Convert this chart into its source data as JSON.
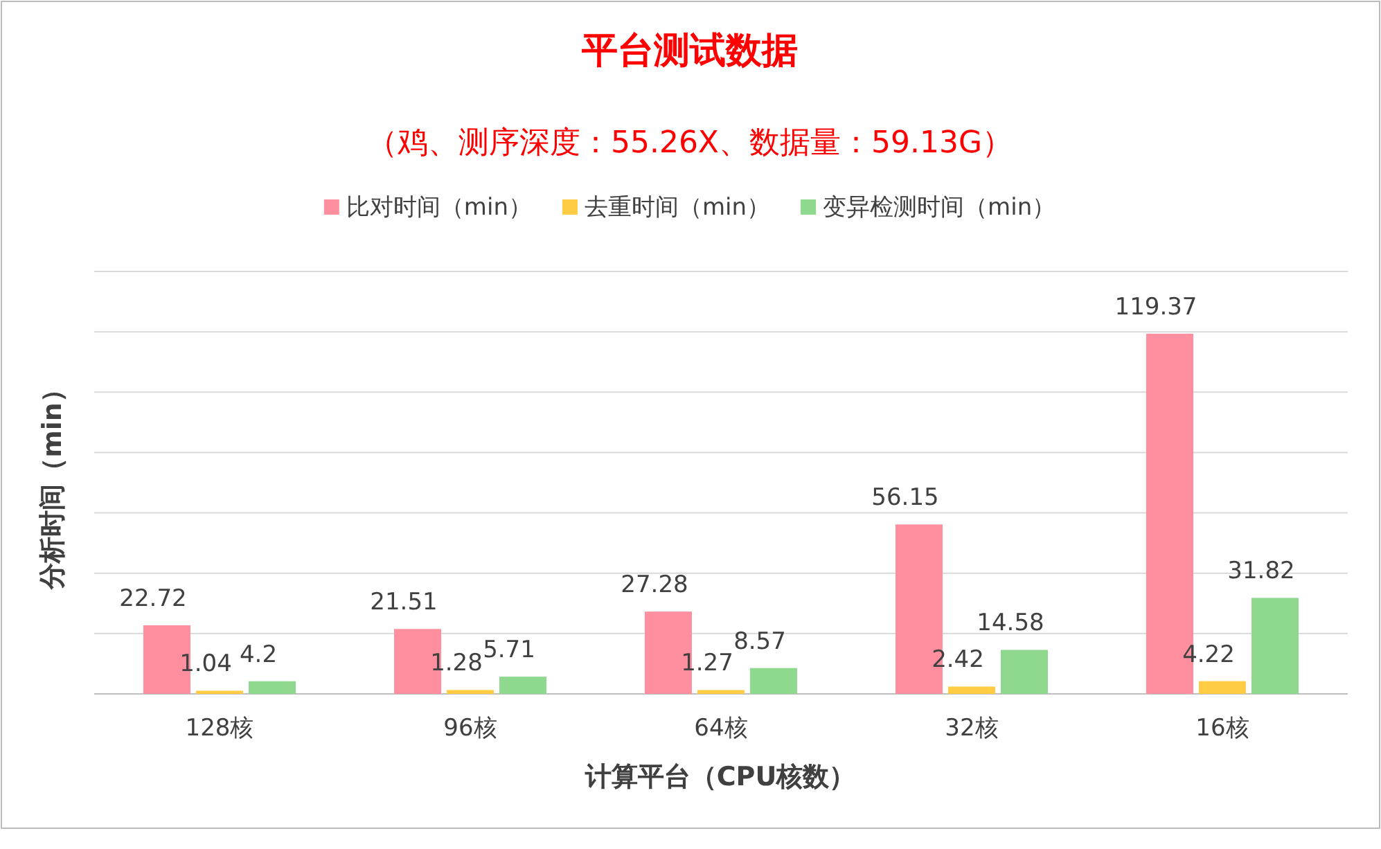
{
  "chart_data": {
    "type": "bar",
    "title": "平台测试数据",
    "subtitle": "（鸡、测序深度：55.26X、数据量：59.13G）",
    "xlabel": "计算平台（CPU核数）",
    "ylabel": "分析时间（min）",
    "categories": [
      "128核",
      "96核",
      "64核",
      "32核",
      "16核"
    ],
    "series": [
      {
        "name": "比对时间（min）",
        "color": "#ff8f9e",
        "values": [
          22.72,
          21.51,
          27.28,
          56.15,
          119.37
        ]
      },
      {
        "name": "去重时间（min）",
        "color": "#ffcc44",
        "values": [
          1.04,
          1.28,
          1.27,
          2.42,
          4.22
        ]
      },
      {
        "name": "变异检测时间（min）",
        "color": "#8fd98f",
        "values": [
          4.2,
          5.71,
          8.57,
          14.58,
          31.82
        ]
      }
    ],
    "ylim": [
      0,
      140
    ],
    "yticks": [
      {
        "value": 0,
        "label": null
      },
      {
        "value": 20,
        "label": null
      },
      {
        "value": 40,
        "label": null
      },
      {
        "value": 60,
        "label": null
      },
      {
        "value": 80,
        "label": null
      },
      {
        "value": 100,
        "label": null
      },
      {
        "value": 120,
        "label": null
      },
      {
        "value": 140,
        "label": null
      }
    ],
    "tick_labels": "x",
    "grid": "y",
    "legend": "top",
    "data_labels": true
  }
}
